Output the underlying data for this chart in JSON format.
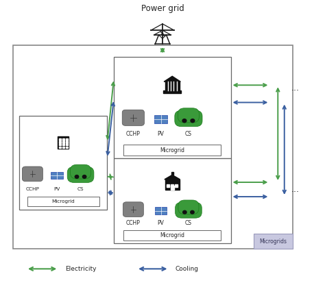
{
  "title": "Power grid",
  "bg_color": "#ffffff",
  "green_color": "#4a9e4a",
  "blue_color": "#3a5fa0",
  "text_color": "#222222",
  "microgrid_label": "Microgrid",
  "microgrids_label": "Microgrids",
  "legend_electricity": "Electricity",
  "legend_cooling": "Cooling",
  "title_fontsize": 8.5,
  "label_fontsize": 6.5,
  "small_fontsize": 6.0
}
